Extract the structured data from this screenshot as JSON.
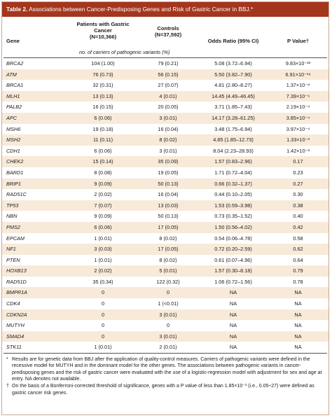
{
  "title": {
    "label": "Table 2.",
    "text": "Associations between Cancer-Predisposing Genes and Risk of Gastric Cancer in BBJ.*"
  },
  "columns": {
    "gene": "Gene",
    "patients_line1": "Patients with Gastric",
    "patients_line2": "Cancer",
    "patients_n": "(N=10,366)",
    "controls": "Controls",
    "controls_n": "(N=37,592)",
    "odds_ratio": "Odds Ratio (95% CI)",
    "p_value": "P Value†"
  },
  "subheader": "no. of carriers of pathogenic variants (%)",
  "rows": [
    {
      "gene": "BRCA2",
      "patients": "104 (1.00)",
      "controls": "79 (0.21)",
      "or": "5.08 (3.72–6.94)",
      "p": "9.83×10⁻²³"
    },
    {
      "gene": "ATM",
      "patients": "76 (0.73)",
      "controls": "56 (0.15)",
      "or": "5.50 (3.82–7.90)",
      "p": "6.91×10⁻¹⁹"
    },
    {
      "gene": "BRCA1",
      "patients": "32 (0.31)",
      "controls": "27 (0.07)",
      "or": "4.81 (2.80–8.27)",
      "p": "1.37×10⁻⁸"
    },
    {
      "gene": "MLH1",
      "patients": "13 (0.13)",
      "controls": "4 (0.01)",
      "or": "14.45 (4.49–46.45)",
      "p": "7.39×10⁻⁶"
    },
    {
      "gene": "PALB2",
      "patients": "16 (0.15)",
      "controls": "20 (0.05)",
      "or": "3.71 (1.85–7.43)",
      "p": "2.19×10⁻⁴"
    },
    {
      "gene": "APC",
      "patients": "6 (0.06)",
      "controls": "3 (0.01)",
      "or": "14.17 (3.28–61.25)",
      "p": "3.85×10⁻⁴"
    },
    {
      "gene": "MSH6",
      "patients": "19 (0.18)",
      "controls": "16 (0.04)",
      "or": "3.48 (1.75–6.94)",
      "p": "3.97×10⁻⁴"
    },
    {
      "gene": "MSH2",
      "patients": "11 (0.11)",
      "controls": "8 (0.02)",
      "or": "4.85 (1.85–12.73)",
      "p": "1.33×10⁻³"
    },
    {
      "gene": "CDH1",
      "patients": "6 (0.06)",
      "controls": "3 (0.01)",
      "or": "8.04 (2.23–28.93)",
      "p": "1.42×10⁻³"
    },
    {
      "gene": "CHEK2",
      "patients": "15 (0.14)",
      "controls": "35 (0.09)",
      "or": "1.57 (0.83–2.96)",
      "p": "0.17"
    },
    {
      "gene": "BARD1",
      "patients": "8 (0.08)",
      "controls": "19 (0.05)",
      "or": "1.71 (0.72–4.04)",
      "p": "0.23"
    },
    {
      "gene": "BRIP1",
      "patients": "9 (0.09)",
      "controls": "50 (0.13)",
      "or": "0.66 (0.32–1.37)",
      "p": "0.27"
    },
    {
      "gene": "RAD51C",
      "patients": "2 (0.02)",
      "controls": "16 (0.04)",
      "or": "0.44 (0.10–2.05)",
      "p": "0.30"
    },
    {
      "gene": "TP53",
      "patients": "7 (0.07)",
      "controls": "13 (0.03)",
      "or": "1.53 (0.59–3.98)",
      "p": "0.38"
    },
    {
      "gene": "NBN",
      "patients": "9 (0.09)",
      "controls": "50 (0.13)",
      "or": "0.73 (0.35–1.52)",
      "p": "0.40"
    },
    {
      "gene": "PMS2",
      "patients": "6 (0.06)",
      "controls": "17 (0.05)",
      "or": "1.50 (0.56–4.02)",
      "p": "0.42"
    },
    {
      "gene": "EPCAM",
      "patients": "1 (0.01)",
      "controls": "8 (0.02)",
      "or": "0.54 (0.06–4.78)",
      "p": "0.58"
    },
    {
      "gene": "NF1",
      "patients": "3 (0.03)",
      "controls": "17 (0.05)",
      "or": "0.72 (0.20–2.59)",
      "p": "0.62"
    },
    {
      "gene": "PTEN",
      "patients": "1 (0.01)",
      "controls": "8 (0.02)",
      "or": "0.61 (0.07–4.96)",
      "p": "0.64"
    },
    {
      "gene": "HOXB13",
      "patients": "2 (0.02)",
      "controls": "5 (0.01)",
      "or": "1.57 (0.30–8.18)",
      "p": "0.79"
    },
    {
      "gene": "RAD51D",
      "patients": "35 (0.34)",
      "controls": "122 (0.32)",
      "or": "1.06 (0.72–1.56)",
      "p": "0.78"
    },
    {
      "gene": "BMPR1A",
      "patients": "0",
      "controls": "0",
      "or": "NA",
      "p": "NA"
    },
    {
      "gene": "CDK4",
      "patients": "0",
      "controls": "1 (<0.01)",
      "or": "NA",
      "p": "NA"
    },
    {
      "gene": "CDKN2A",
      "patients": "0",
      "controls": "3 (0.01)",
      "or": "NA",
      "p": "NA"
    },
    {
      "gene": "MUTYH",
      "patients": "0",
      "controls": "0",
      "or": "NA",
      "p": "NA"
    },
    {
      "gene": "SMAD4",
      "patients": "0",
      "controls": "3 (0.01)",
      "or": "NA",
      "p": "NA"
    },
    {
      "gene": "STK11",
      "patients": "1 (0.01)",
      "controls": "2 (0.01)",
      "or": "NA",
      "p": "NA"
    }
  ],
  "footnotes": {
    "star_mark": "*",
    "star_text": "Results are for genetic data from BBJ after the application of quality-control measures. Carriers of pathogenic variants were defined in the recessive model for MUTYH and in the dominant model for the other genes. The associations between pathogenic variants in cancer-predisposing genes and the risk of gastric cancer were evaluated with the use of a logistic-regression model with adjustment for sex and age at entry. NA denotes not available.",
    "dagger_mark": "†",
    "dagger_text": "On the basis of a Bonferroni-corrected threshold of significance, genes with a P value of less than 1.85×10⁻³ (i.e., 0.05÷27) were defined as gastric cancer risk genes."
  },
  "colors": {
    "title_bg": "#a4361e",
    "row_alt": "#f8ead9",
    "border": "#c9a98c"
  }
}
